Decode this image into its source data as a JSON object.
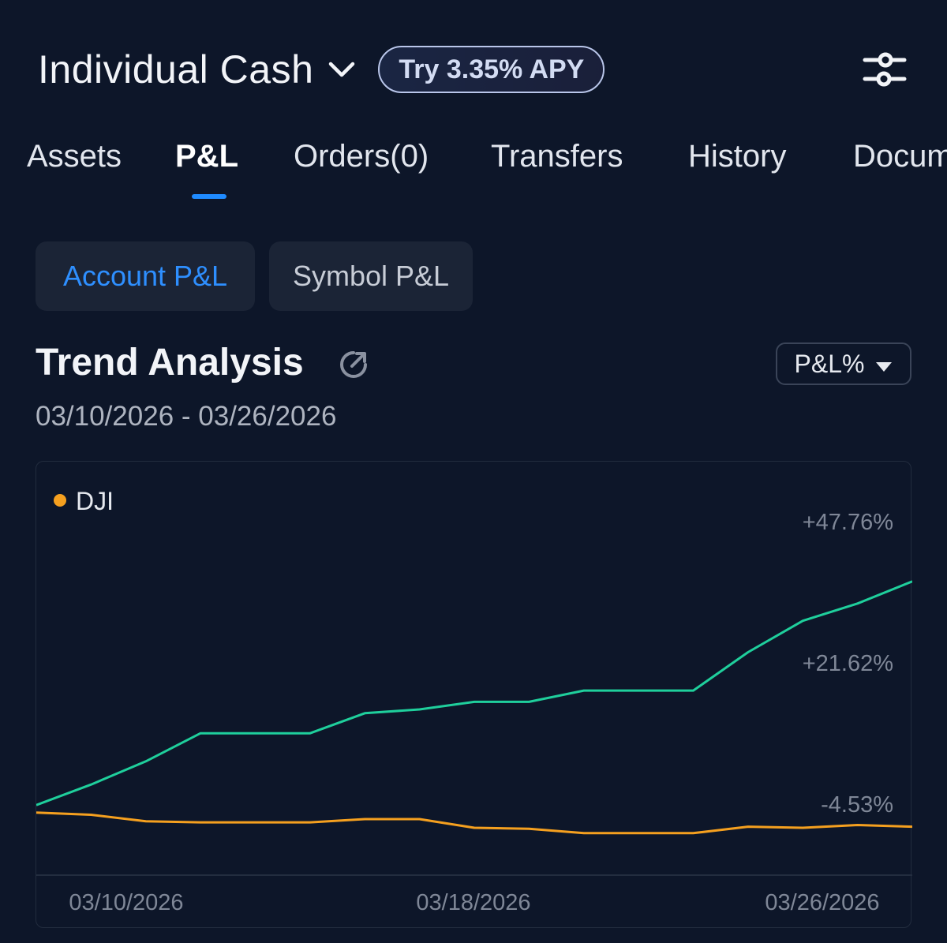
{
  "header": {
    "account_name": "Individual Cash",
    "apy_badge": "Try 3.35% APY"
  },
  "tabs": [
    {
      "label": "Assets"
    },
    {
      "label": "P&L",
      "active": true
    },
    {
      "label": "Orders(0)"
    },
    {
      "label": "Transfers"
    },
    {
      "label": "History"
    },
    {
      "label": "Documents"
    }
  ],
  "segments": {
    "account": "Account P&L",
    "symbol": "Symbol P&L"
  },
  "trend": {
    "title": "Trend Analysis",
    "metric_dropdown": "P&L%",
    "date_range": "03/10/2026 - 03/26/2026"
  },
  "colors": {
    "account_line": "#1fcf9c",
    "benchmark_line": "#f5a01f",
    "accent": "#1f8bff"
  },
  "chart_data": {
    "type": "line",
    "legend": [
      {
        "name": "DJI",
        "color": "#f5a01f"
      }
    ],
    "legend_position": "top-left",
    "y_ticks": [
      "+47.76%",
      "+21.62%",
      "-4.53%"
    ],
    "y_tick_values": [
      47.76,
      21.62,
      -4.53
    ],
    "x_ticks": [
      "03/10/2026",
      "03/18/2026",
      "03/26/2026"
    ],
    "ylim": [
      -4.53,
      47.76
    ],
    "x": [
      "03/10/2026",
      "03/11/2026",
      "03/12/2026",
      "03/13/2026",
      "03/14/2026",
      "03/15/2026",
      "03/16/2026",
      "03/17/2026",
      "03/18/2026",
      "03/19/2026",
      "03/20/2026",
      "03/21/2026",
      "03/22/2026",
      "03/23/2026",
      "03/24/2026",
      "03/25/2026",
      "03/26/2026"
    ],
    "series": [
      {
        "values": [
          -3.1,
          0.7,
          5.0,
          10.2,
          10.2,
          10.2,
          13.9,
          14.6,
          16.0,
          16.0,
          18.1,
          18.1,
          18.1,
          25.2,
          31.0,
          34.2,
          38.3
        ]
      },
      {
        "name": "DJI",
        "values": [
          -4.5,
          -4.9,
          -6.1,
          -6.3,
          -6.3,
          -6.3,
          -5.7,
          -5.7,
          -7.3,
          -7.5,
          -8.3,
          -8.3,
          -8.3,
          -7.1,
          -7.3,
          -6.8,
          -7.1
        ]
      }
    ],
    "grid": false
  }
}
